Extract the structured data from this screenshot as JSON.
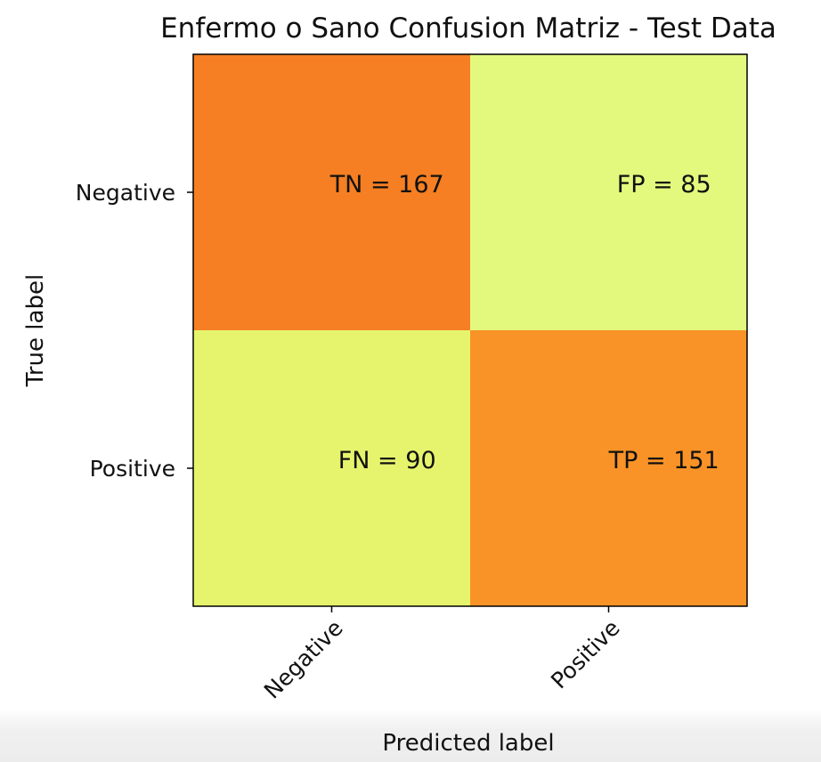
{
  "chart_data": {
    "type": "heatmap",
    "title": "Enfermo o Sano Confusion Matriz - Test Data",
    "xlabel": "Predicted label",
    "ylabel": "True label",
    "x_categories": [
      "Negative",
      "Positive"
    ],
    "y_categories": [
      "Negative",
      "Positive"
    ],
    "cells": [
      {
        "row": 0,
        "col": 0,
        "text": "TN = 167",
        "value": 167,
        "color": "#f57f22"
      },
      {
        "row": 0,
        "col": 1,
        "text": "FP = 85",
        "value": 85,
        "color": "#e3f97e"
      },
      {
        "row": 1,
        "col": 0,
        "text": "FN = 90",
        "value": 90,
        "color": "#e6f46d"
      },
      {
        "row": 1,
        "col": 1,
        "text": "TP = 151",
        "value": 151,
        "color": "#f99327"
      }
    ],
    "grid": false,
    "colormap": "Wistia"
  }
}
